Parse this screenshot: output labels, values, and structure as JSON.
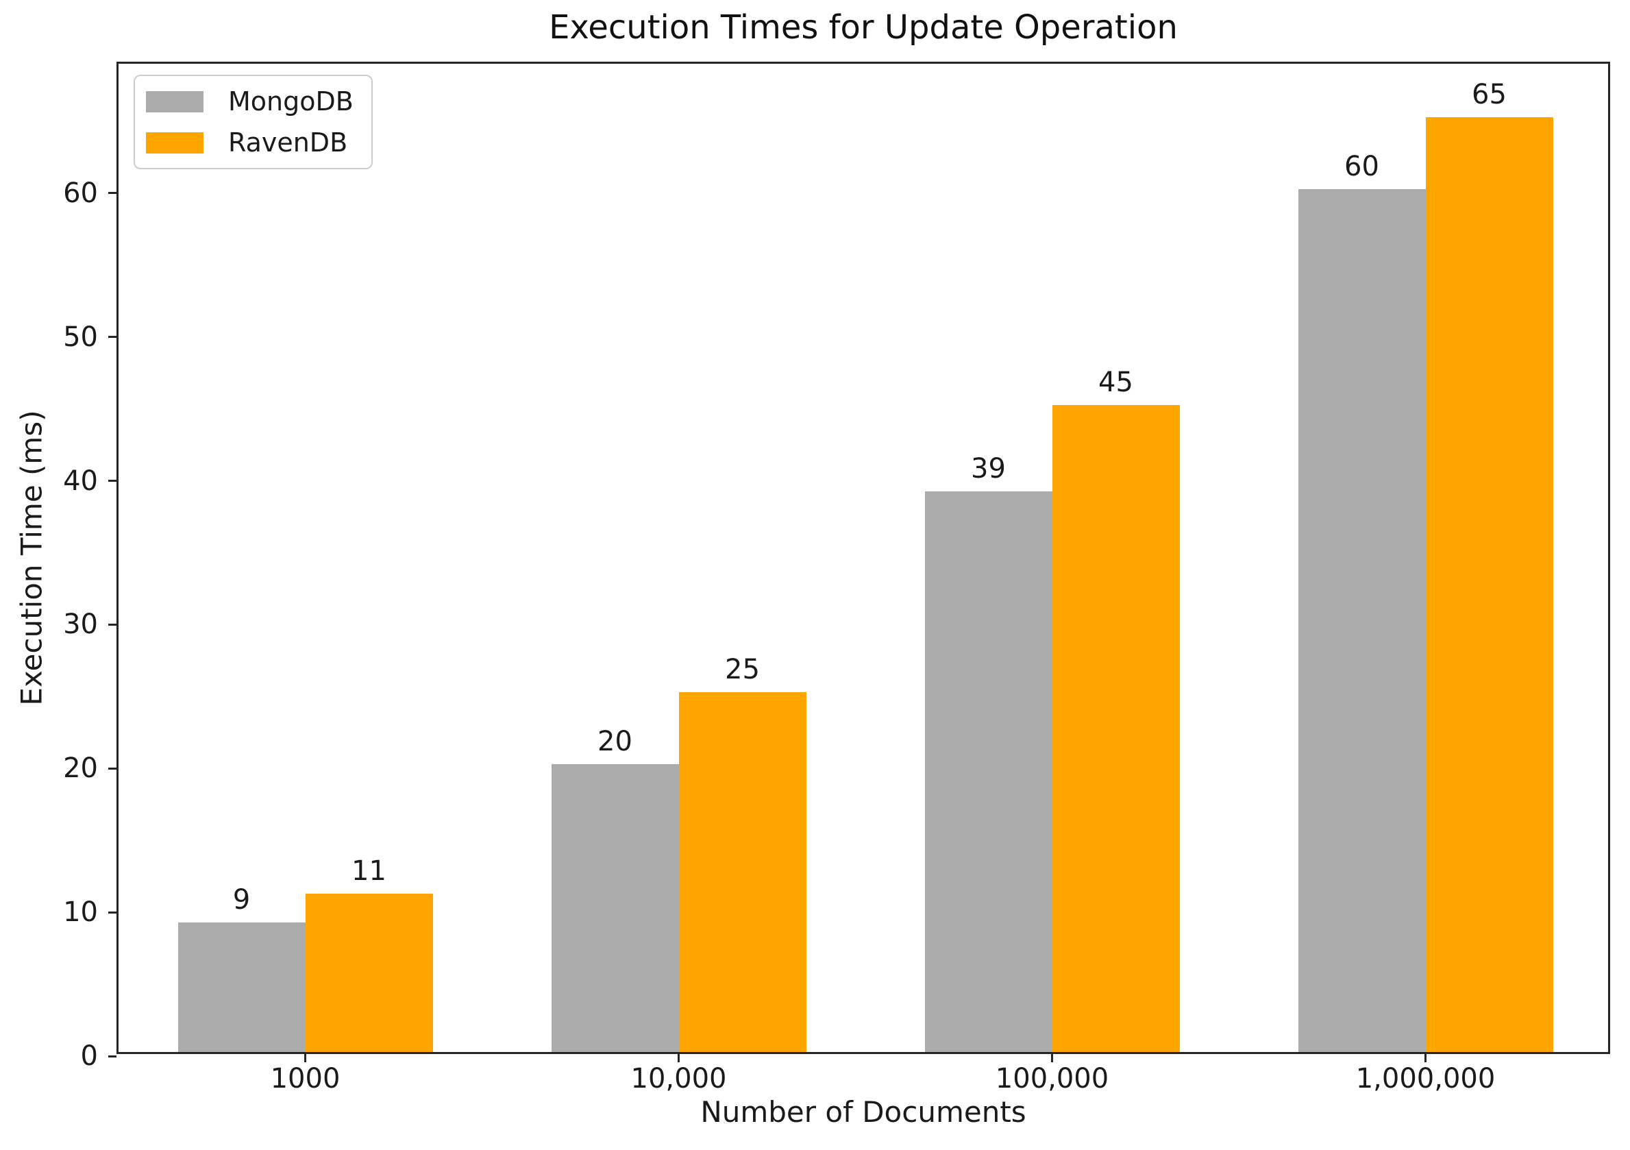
{
  "chart_data": {
    "type": "bar",
    "title": "Execution Times for Update Operation",
    "xlabel": "Number of Documents",
    "ylabel": "Execution Time (ms)",
    "categories": [
      "1000",
      "10,000",
      "100,000",
      "1,000,000"
    ],
    "series": [
      {
        "name": "MongoDB",
        "color": "#ababab",
        "values": [
          9,
          20,
          39,
          60
        ]
      },
      {
        "name": "RavenDB",
        "color": "#ffa500",
        "values": [
          11,
          25,
          45,
          65
        ]
      }
    ],
    "yticks": [
      0,
      10,
      20,
      30,
      40,
      50,
      60
    ],
    "ylim": [
      0,
      69
    ],
    "bar_value_labels": [
      9,
      11,
      20,
      25,
      39,
      45,
      60,
      65
    ],
    "legend_position": "upper left",
    "grid": false,
    "background": "#ffffff"
  }
}
